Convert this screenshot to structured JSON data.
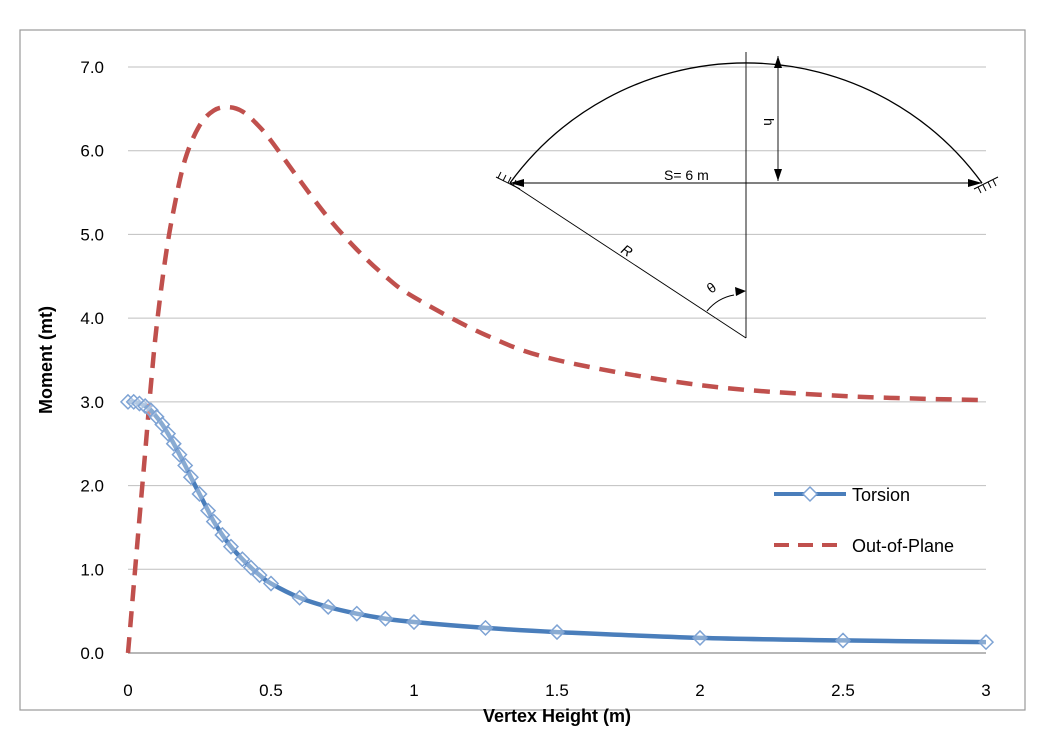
{
  "chart_data": {
    "type": "line",
    "title": "",
    "xlabel": "Vertex Height (m)",
    "ylabel": "Moment (mt)",
    "xlim": [
      0,
      3
    ],
    "ylim": [
      0,
      7
    ],
    "x_ticks": [
      "0",
      "0.5",
      "1",
      "1.5",
      "2",
      "2.5",
      "3"
    ],
    "y_ticks": [
      "0.0",
      "1.0",
      "2.0",
      "3.0",
      "4.0",
      "5.0",
      "6.0",
      "7.0"
    ],
    "grid": "horizontal",
    "legend_position": "right",
    "series": [
      {
        "name": "Torsion",
        "color": "#4a7ebb",
        "style": "solid-diamond",
        "x": [
          0,
          0.02,
          0.04,
          0.06,
          0.08,
          0.1,
          0.12,
          0.14,
          0.16,
          0.18,
          0.2,
          0.22,
          0.25,
          0.28,
          0.3,
          0.33,
          0.36,
          0.4,
          0.43,
          0.46,
          0.5,
          0.6,
          0.7,
          0.8,
          0.9,
          1.0,
          1.25,
          1.5,
          2.0,
          2.5,
          3.0
        ],
        "y": [
          3.0,
          3.0,
          2.98,
          2.95,
          2.9,
          2.82,
          2.73,
          2.62,
          2.5,
          2.37,
          2.24,
          2.1,
          1.9,
          1.7,
          1.57,
          1.41,
          1.27,
          1.12,
          1.02,
          0.93,
          0.83,
          0.66,
          0.55,
          0.47,
          0.41,
          0.37,
          0.3,
          0.25,
          0.18,
          0.15,
          0.13
        ]
      },
      {
        "name": "Out-of-Plane",
        "color": "#c0504d",
        "style": "dashed",
        "x": [
          0,
          0.02,
          0.04,
          0.06,
          0.08,
          0.1,
          0.13,
          0.16,
          0.2,
          0.25,
          0.3,
          0.35,
          0.4,
          0.45,
          0.5,
          0.6,
          0.7,
          0.8,
          0.9,
          1.0,
          1.25,
          1.5,
          2.0,
          2.5,
          3.0
        ],
        "y": [
          0.0,
          0.8,
          1.6,
          2.4,
          3.2,
          3.9,
          4.7,
          5.3,
          5.9,
          6.3,
          6.48,
          6.52,
          6.47,
          6.32,
          6.12,
          5.65,
          5.2,
          4.82,
          4.5,
          4.25,
          3.8,
          3.5,
          3.2,
          3.07,
          3.02
        ]
      }
    ],
    "inset": {
      "span_label": "S= 6 m",
      "height_label": "h",
      "radius_label": "R",
      "angle_label": "θ"
    }
  }
}
